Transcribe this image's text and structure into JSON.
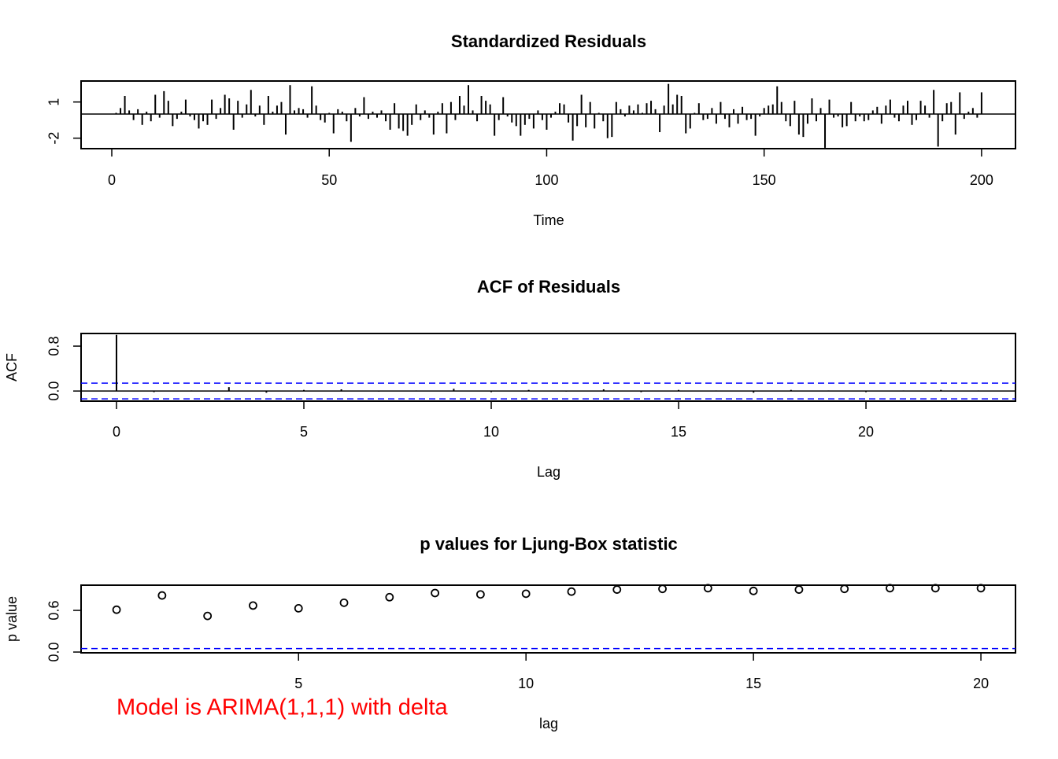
{
  "chart_data": [
    {
      "type": "spike",
      "title": "Standardized Residuals",
      "xlabel": "Time",
      "color": "#000000",
      "x": [
        1,
        2,
        3,
        4,
        5,
        6,
        7,
        8,
        9,
        10,
        11,
        12,
        13,
        14,
        15,
        16,
        17,
        18,
        19,
        20,
        21,
        22,
        23,
        24,
        25,
        26,
        27,
        28,
        29,
        30,
        31,
        32,
        33,
        34,
        35,
        36,
        37,
        38,
        39,
        40,
        41,
        42,
        43,
        44,
        45,
        46,
        47,
        48,
        49,
        50,
        51,
        52,
        53,
        54,
        55,
        56,
        57,
        58,
        59,
        60,
        61,
        62,
        63,
        64,
        65,
        66,
        67,
        68,
        69,
        70,
        71,
        72,
        73,
        74,
        75,
        76,
        77,
        78,
        79,
        80,
        81,
        82,
        83,
        84,
        85,
        86,
        87,
        88,
        89,
        90,
        91,
        92,
        93,
        94,
        95,
        96,
        97,
        98,
        99,
        100,
        101,
        102,
        103,
        104,
        105,
        106,
        107,
        108,
        109,
        110,
        111,
        112,
        113,
        114,
        115,
        116,
        117,
        118,
        119,
        120,
        121,
        122,
        123,
        124,
        125,
        126,
        127,
        128,
        129,
        130,
        131,
        132,
        133,
        134,
        135,
        136,
        137,
        138,
        139,
        140,
        141,
        142,
        143,
        144,
        145,
        146,
        147,
        148,
        149,
        150,
        151,
        152,
        153,
        154,
        155,
        156,
        157,
        158,
        159,
        160,
        161,
        162,
        163,
        164,
        165,
        166,
        167,
        168,
        169,
        170,
        171,
        172,
        173,
        174,
        175,
        176,
        177,
        178,
        179,
        180,
        181,
        182,
        183,
        184,
        185,
        186,
        187,
        188,
        189,
        190,
        191,
        192,
        193,
        194,
        195,
        196,
        197,
        198,
        199,
        200
      ],
      "values": [
        0.1,
        0.5,
        1.5,
        0.3,
        -0.5,
        0.4,
        -0.9,
        0.2,
        -0.6,
        1.6,
        -0.3,
        1.9,
        1.1,
        -1.0,
        -0.4,
        0.2,
        1.2,
        -0.2,
        -0.5,
        -1.2,
        -0.6,
        -0.9,
        1.2,
        -0.4,
        0.5,
        1.6,
        1.3,
        -1.3,
        1.1,
        -0.3,
        0.8,
        2.0,
        -0.2,
        0.7,
        -0.9,
        1.5,
        0.2,
        0.7,
        1.0,
        -1.7,
        2.4,
        0.3,
        0.5,
        0.4,
        -0.3,
        2.3,
        0.7,
        -0.5,
        -0.7,
        0.1,
        -1.6,
        0.4,
        0.2,
        -0.6,
        -2.3,
        0.5,
        -0.2,
        1.4,
        -0.4,
        0.2,
        -0.3,
        0.3,
        -0.6,
        -1.3,
        0.9,
        -1.2,
        -1.4,
        -1.8,
        -0.9,
        0.8,
        -0.5,
        0.3,
        -0.3,
        -1.7,
        0.2,
        0.9,
        -1.6,
        1.0,
        -0.5,
        1.5,
        0.7,
        2.4,
        0.3,
        -0.6,
        1.5,
        1.1,
        0.8,
        -1.8,
        -0.5,
        1.4,
        -0.2,
        -0.7,
        -1.0,
        -1.8,
        -0.9,
        -0.4,
        -1.2,
        0.3,
        -0.5,
        -1.3,
        -0.3,
        0.2,
        0.9,
        0.8,
        -0.7,
        -2.2,
        -1.0,
        1.6,
        -1.1,
        1.0,
        -1.2,
        0.1,
        -0.6,
        -2.0,
        -1.9,
        1.0,
        0.4,
        -0.2,
        0.7,
        0.3,
        0.8,
        0.1,
        0.9,
        1.1,
        0.4,
        -1.5,
        0.7,
        2.5,
        0.8,
        1.6,
        1.5,
        -1.6,
        -1.2,
        0.1,
        0.9,
        -0.5,
        -0.4,
        0.5,
        -0.8,
        1.0,
        -0.4,
        -1.1,
        0.4,
        -0.8,
        0.6,
        -0.5,
        -0.4,
        -1.8,
        -0.2,
        0.5,
        0.7,
        0.8,
        2.3,
        1.0,
        -0.6,
        -1.0,
        1.1,
        -1.7,
        -1.9,
        -0.8,
        1.3,
        -0.6,
        0.5,
        -2.8,
        1.2,
        -0.3,
        -0.2,
        -1.1,
        -1.0,
        1.0,
        -0.6,
        -0.2,
        -0.6,
        -0.5,
        0.3,
        0.6,
        -0.8,
        0.7,
        1.2,
        -0.3,
        -0.6,
        0.7,
        1.1,
        -0.9,
        -0.5,
        1.1,
        0.7,
        -0.3,
        2.0,
        -2.7,
        -0.6,
        0.9,
        1.0,
        -1.7,
        1.8,
        -0.4,
        0.2,
        0.5,
        -0.3,
        1.8
      ],
      "xlim": [
        -7.06,
        207.8
      ],
      "ylim": [
        -2.87,
        2.74
      ],
      "xticks": [
        0,
        50,
        100,
        150,
        200
      ],
      "yticks": [
        -2,
        1
      ],
      "hline": 0
    },
    {
      "type": "spike",
      "title": "ACF of Residuals",
      "xlabel": "Lag",
      "ylabel": "ACF",
      "color": "#000000",
      "x": [
        0,
        1,
        2,
        3,
        4,
        5,
        6,
        7,
        8,
        9,
        10,
        11,
        12,
        13,
        14,
        15,
        16,
        17,
        18,
        19,
        20,
        21,
        22,
        23
      ],
      "values": [
        1,
        -0.02,
        0.01,
        0.07,
        -0.03,
        0.02,
        0.03,
        -0.01,
        0.01,
        0.04,
        -0.02,
        0.02,
        -0.01,
        0.03,
        -0.02,
        0.02,
        0.01,
        -0.03,
        0.02,
        0.01,
        -0.02,
        0.01,
        0.02,
        0.01
      ],
      "xlim": [
        -0.945,
        23.99
      ],
      "ylim": [
        -0.18,
        1.025
      ],
      "xticks": [
        0,
        5,
        10,
        15,
        20
      ],
      "yticks": [
        {
          "value": 0,
          "label": "0.0"
        },
        {
          "value": 0.8,
          "label": "0.8"
        }
      ],
      "hline": 0,
      "bands": [
        0.14,
        -0.14
      ],
      "band_color": "#0000ff"
    },
    {
      "type": "scatter",
      "title": "p values for Ljung-Box statistic",
      "xlabel": "lag",
      "ylabel": "p value",
      "color": "#000000",
      "x": [
        1,
        2,
        3,
        4,
        5,
        6,
        7,
        8,
        9,
        10,
        11,
        12,
        13,
        14,
        15,
        16,
        17,
        18,
        19,
        20
      ],
      "values": [
        0.61,
        0.815,
        0.52,
        0.67,
        0.63,
        0.71,
        0.79,
        0.85,
        0.83,
        0.84,
        0.87,
        0.9,
        0.91,
        0.92,
        0.88,
        0.9,
        0.91,
        0.92,
        0.92,
        0.92
      ],
      "xlim": [
        0.22,
        20.76
      ],
      "ylim": [
        -0.011,
        0.963
      ],
      "xticks": [
        5,
        10,
        15,
        20
      ],
      "yticks": [
        {
          "value": 0,
          "label": "0.0"
        },
        {
          "value": 0.6,
          "label": "0.6"
        }
      ],
      "bands": [
        0.05
      ],
      "band_color": "#0000ff",
      "annotation": "Model is ARIMA(1,1,1) with delta",
      "annotation_color": "#ff0000"
    }
  ]
}
